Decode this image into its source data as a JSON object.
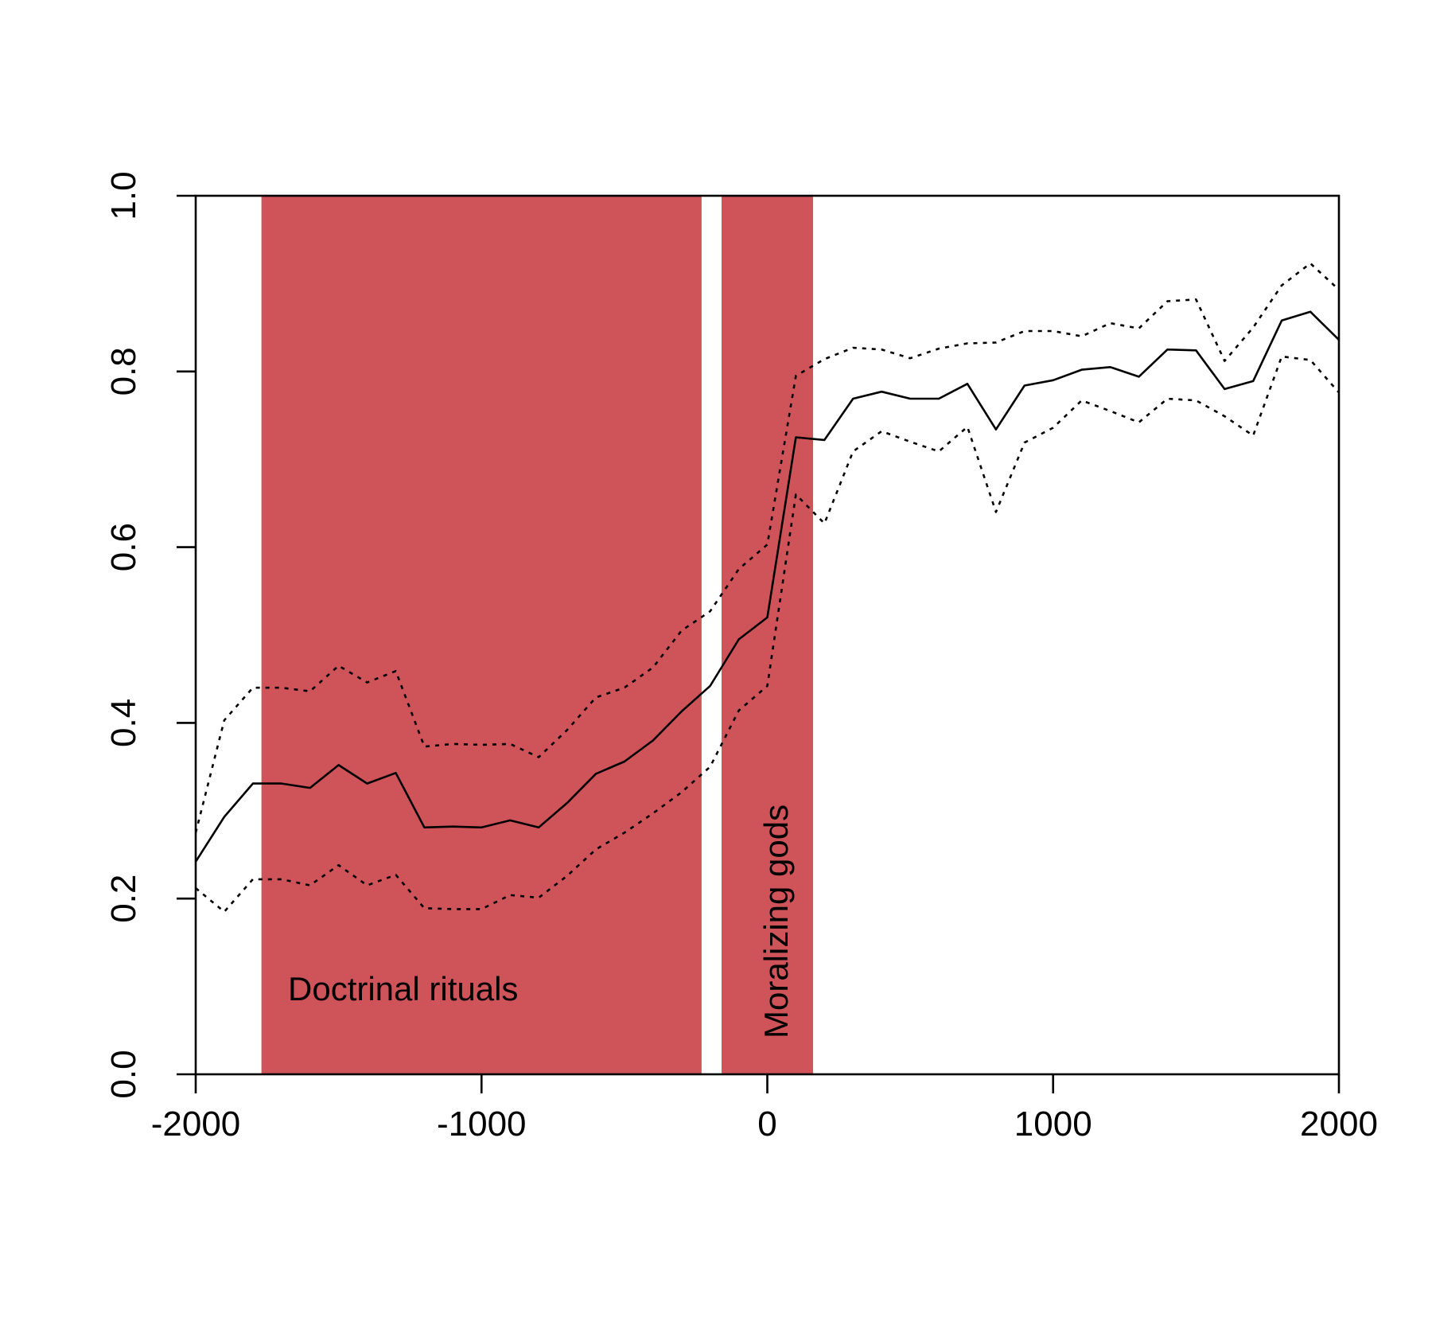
{
  "chart_data": {
    "type": "line",
    "title": "",
    "xlabel": "",
    "ylabel": "",
    "xlim": [
      -2000,
      2000
    ],
    "ylim": [
      0,
      1
    ],
    "x_ticks": [
      -2000,
      -1000,
      0,
      1000,
      2000
    ],
    "x_tick_labels": [
      "-2000",
      "-1000",
      "0",
      "1000",
      "2000"
    ],
    "y_ticks": [
      0,
      0.2,
      0.4,
      0.6,
      0.8,
      1.0
    ],
    "y_tick_labels": [
      "0.0",
      "0.2",
      "0.4",
      "0.6",
      "0.8",
      "1.0"
    ],
    "grid": false,
    "shaded_regions": [
      {
        "label": "Doctrinal rituals",
        "x_start": -1770,
        "x_end": -230,
        "color": "#cf5459",
        "label_orientation": "horizontal"
      },
      {
        "label": "Moralizing gods",
        "x_start": -160,
        "x_end": 160,
        "color": "#cf5459",
        "label_orientation": "vertical"
      }
    ],
    "x": [
      -2000,
      -1900,
      -1800,
      -1700,
      -1600,
      -1500,
      -1400,
      -1300,
      -1200,
      -1100,
      -1000,
      -900,
      -800,
      -700,
      -600,
      -500,
      -400,
      -300,
      -200,
      -100,
      0,
      100,
      200,
      300,
      400,
      500,
      600,
      700,
      800,
      900,
      1000,
      1100,
      1200,
      1300,
      1400,
      1500,
      1600,
      1700,
      1800,
      1900,
      2000
    ],
    "series": [
      {
        "style": "solid",
        "values": [
          0.242,
          0.293,
          0.331,
          0.331,
          0.326,
          0.352,
          0.331,
          0.343,
          0.281,
          0.282,
          0.281,
          0.289,
          0.281,
          0.309,
          0.342,
          0.356,
          0.38,
          0.413,
          0.442,
          0.495,
          0.52,
          0.725,
          0.722,
          0.769,
          0.777,
          0.769,
          0.769,
          0.786,
          0.734,
          0.784,
          0.79,
          0.802,
          0.805,
          0.794,
          0.825,
          0.824,
          0.78,
          0.789,
          0.858,
          0.868,
          0.836
        ]
      },
      {
        "style": "dotted",
        "values": [
          0.275,
          0.403,
          0.44,
          0.44,
          0.436,
          0.465,
          0.446,
          0.459,
          0.373,
          0.376,
          0.375,
          0.376,
          0.361,
          0.392,
          0.429,
          0.44,
          0.463,
          0.505,
          0.527,
          0.575,
          0.603,
          0.795,
          0.814,
          0.827,
          0.825,
          0.815,
          0.826,
          0.832,
          0.833,
          0.846,
          0.846,
          0.84,
          0.855,
          0.849,
          0.88,
          0.882,
          0.812,
          0.85,
          0.898,
          0.923,
          0.893
        ]
      },
      {
        "style": "dotted",
        "values": [
          0.212,
          0.185,
          0.222,
          0.222,
          0.215,
          0.238,
          0.215,
          0.227,
          0.189,
          0.188,
          0.188,
          0.204,
          0.201,
          0.226,
          0.256,
          0.275,
          0.297,
          0.321,
          0.35,
          0.414,
          0.442,
          0.66,
          0.627,
          0.709,
          0.732,
          0.72,
          0.709,
          0.737,
          0.64,
          0.719,
          0.736,
          0.767,
          0.755,
          0.742,
          0.769,
          0.767,
          0.749,
          0.727,
          0.817,
          0.813,
          0.776
        ]
      }
    ]
  }
}
